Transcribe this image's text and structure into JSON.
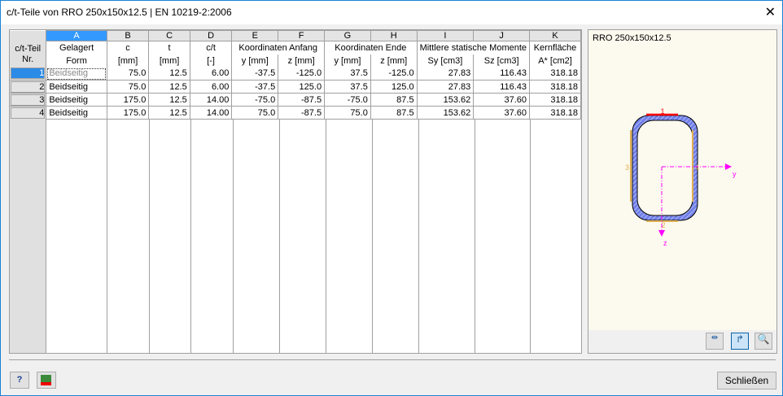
{
  "window": {
    "title": "c/t-Teile von RRO 250x150x12.5 | EN 10219-2:2006",
    "close_icon": "close-icon"
  },
  "table": {
    "letters": [
      "A",
      "B",
      "C",
      "D",
      "E",
      "F",
      "G",
      "H",
      "I",
      "J",
      "K"
    ],
    "row_header_title": "c/t-Teil",
    "row_header_sub": "Nr.",
    "header1": [
      "Gelagert",
      "c",
      "t",
      "c/t",
      "Koordinaten Anfang",
      "Koordinaten Ende",
      "Mittlere statische Momente",
      "Kernfläche"
    ],
    "header2": [
      "Form",
      "[mm]",
      "[mm]",
      "[-]",
      "y [mm]",
      "z [mm]",
      "y [mm]",
      "z [mm]",
      "Sy [cm3]",
      "Sz [cm3]",
      "A* [cm2]"
    ],
    "rows": [
      {
        "nr": "1",
        "cells": [
          "Beidseitig",
          "75.0",
          "12.5",
          "6.00",
          "-37.5",
          "-125.0",
          "37.5",
          "-125.0",
          "27.83",
          "116.43",
          "318.18"
        ]
      },
      {
        "nr": "2",
        "cells": [
          "Beidseitig",
          "75.0",
          "12.5",
          "6.00",
          "-37.5",
          "125.0",
          "37.5",
          "125.0",
          "27.83",
          "116.43",
          "318.18"
        ]
      },
      {
        "nr": "3",
        "cells": [
          "Beidseitig",
          "175.0",
          "12.5",
          "14.00",
          "-75.0",
          "-87.5",
          "-75.0",
          "87.5",
          "153.62",
          "37.60",
          "318.18"
        ]
      },
      {
        "nr": "4",
        "cells": [
          "Beidseitig",
          "175.0",
          "12.5",
          "14.00",
          "75.0",
          "-87.5",
          "75.0",
          "87.5",
          "153.62",
          "37.60",
          "318.18"
        ]
      }
    ],
    "selected_row": "1"
  },
  "preview": {
    "title": "RRO 250x150x12.5",
    "labels": {
      "p1": "1",
      "p2": "2",
      "p3": "3",
      "p4": "4",
      "y": "y",
      "z": "z"
    },
    "colors": {
      "section": "#6f7ee8",
      "selected": "#ff0000",
      "part": "#e0b050",
      "axis": "#ff00ff"
    }
  },
  "buttons": {
    "close": "Schließen"
  }
}
